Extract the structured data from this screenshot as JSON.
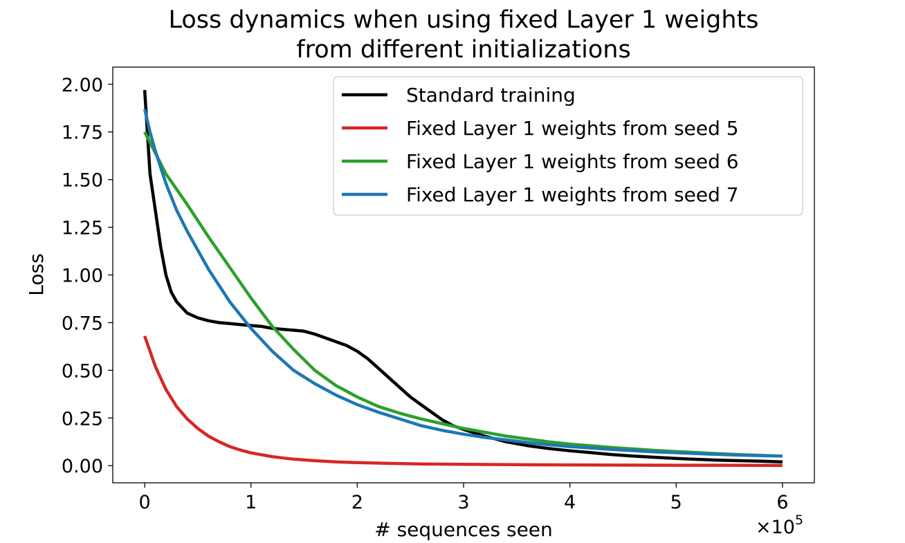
{
  "chart_data": {
    "type": "line",
    "title": [
      "Loss dynamics when using fixed Layer 1 weights",
      "from different initializations"
    ],
    "xlabel": "# sequences seen",
    "ylabel": "Loss",
    "x_offset_label": "×10",
    "x_offset_exponent": "5",
    "xlim": [
      -0.3,
      6.3
    ],
    "ylim": [
      -0.09,
      2.09
    ],
    "x_ticks": [
      0,
      1,
      2,
      3,
      4,
      5,
      6
    ],
    "x_tick_labels": [
      "0",
      "1",
      "2",
      "3",
      "4",
      "5",
      "6"
    ],
    "y_ticks": [
      0,
      0.25,
      0.5,
      0.75,
      1.0,
      1.25,
      1.5,
      1.75,
      2.0
    ],
    "y_tick_labels": [
      "0.00",
      "0.25",
      "0.50",
      "0.75",
      "1.00",
      "1.25",
      "1.50",
      "1.75",
      "2.00"
    ],
    "grid": false,
    "legend_position": "top-right",
    "series": [
      {
        "name": "Standard training",
        "color": "#000000",
        "x": [
          0,
          0.05,
          0.1,
          0.15,
          0.2,
          0.25,
          0.3,
          0.4,
          0.5,
          0.6,
          0.7,
          0.8,
          0.9,
          1.0,
          1.1,
          1.2,
          1.3,
          1.4,
          1.5,
          1.6,
          1.7,
          1.8,
          1.9,
          2.0,
          2.1,
          2.2,
          2.3,
          2.4,
          2.5,
          2.6,
          2.7,
          2.8,
          2.9,
          3.0,
          3.2,
          3.4,
          3.6,
          3.8,
          4.0,
          4.2,
          4.4,
          4.6,
          4.8,
          5.0,
          5.2,
          5.4,
          5.6,
          5.8,
          6.0
        ],
        "values": [
          1.97,
          1.53,
          1.34,
          1.15,
          1.0,
          0.91,
          0.86,
          0.8,
          0.775,
          0.76,
          0.75,
          0.745,
          0.74,
          0.735,
          0.73,
          0.72,
          0.715,
          0.71,
          0.705,
          0.69,
          0.67,
          0.65,
          0.63,
          0.6,
          0.56,
          0.51,
          0.46,
          0.41,
          0.36,
          0.32,
          0.28,
          0.24,
          0.21,
          0.19,
          0.155,
          0.125,
          0.105,
          0.09,
          0.078,
          0.068,
          0.058,
          0.05,
          0.044,
          0.038,
          0.033,
          0.029,
          0.026,
          0.023,
          0.02
        ]
      },
      {
        "name": "Fixed Layer 1 weights from seed 5",
        "color": "#d62728",
        "x": [
          0,
          0.1,
          0.2,
          0.3,
          0.4,
          0.5,
          0.6,
          0.7,
          0.8,
          0.9,
          1.0,
          1.2,
          1.4,
          1.6,
          1.8,
          2.0,
          2.3,
          2.6,
          3.0,
          3.5,
          4.0,
          4.5,
          5.0,
          5.5,
          6.0
        ],
        "values": [
          0.68,
          0.52,
          0.4,
          0.31,
          0.245,
          0.195,
          0.155,
          0.125,
          0.1,
          0.082,
          0.067,
          0.047,
          0.034,
          0.026,
          0.02,
          0.016,
          0.012,
          0.009,
          0.007,
          0.005,
          0.004,
          0.003,
          0.002,
          0.002,
          0.001
        ]
      },
      {
        "name": "Fixed Layer 1 weights from seed 6",
        "color": "#2ca02c",
        "x": [
          0,
          0.1,
          0.2,
          0.4,
          0.6,
          0.8,
          1.0,
          1.2,
          1.4,
          1.6,
          1.8,
          2.0,
          2.2,
          2.4,
          2.6,
          2.8,
          3.0,
          3.2,
          3.4,
          3.6,
          3.8,
          4.0,
          4.4,
          4.8,
          5.2,
          5.6,
          6.0
        ],
        "values": [
          1.75,
          1.64,
          1.53,
          1.37,
          1.2,
          1.04,
          0.88,
          0.73,
          0.61,
          0.5,
          0.42,
          0.36,
          0.31,
          0.275,
          0.245,
          0.22,
          0.195,
          0.175,
          0.155,
          0.14,
          0.125,
          0.113,
          0.095,
          0.08,
          0.068,
          0.058,
          0.05
        ]
      },
      {
        "name": "Fixed Layer 1 weights from seed 7",
        "color": "#1f77b4",
        "x": [
          0,
          0.05,
          0.1,
          0.2,
          0.3,
          0.4,
          0.6,
          0.8,
          1.0,
          1.2,
          1.4,
          1.6,
          1.8,
          2.0,
          2.2,
          2.4,
          2.6,
          2.8,
          3.0,
          3.2,
          3.4,
          3.6,
          3.8,
          4.0,
          4.4,
          4.8,
          5.2,
          5.6,
          6.0
        ],
        "values": [
          1.87,
          1.75,
          1.65,
          1.48,
          1.34,
          1.23,
          1.03,
          0.86,
          0.72,
          0.6,
          0.5,
          0.43,
          0.37,
          0.32,
          0.28,
          0.245,
          0.21,
          0.185,
          0.165,
          0.148,
          0.135,
          0.122,
          0.11,
          0.1,
          0.085,
          0.072,
          0.063,
          0.055,
          0.05
        ]
      }
    ]
  }
}
